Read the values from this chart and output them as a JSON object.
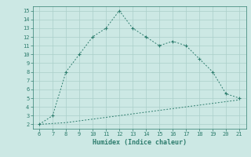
{
  "xlabel": "Humidex (Indice chaleur)",
  "x_main": [
    6,
    7,
    8,
    9,
    10,
    11,
    12,
    13,
    14,
    15,
    16,
    17,
    18,
    19,
    20,
    21
  ],
  "y_main": [
    2,
    3,
    8,
    10,
    12,
    13,
    15,
    13,
    12,
    11,
    11.5,
    11,
    9.5,
    8,
    5.5,
    5
  ],
  "x_flat": [
    6,
    7,
    8,
    9,
    10,
    11,
    12,
    13,
    14,
    15,
    16,
    17,
    18,
    19,
    20,
    21
  ],
  "y_flat": [
    2.0,
    2.1,
    2.2,
    2.4,
    2.6,
    2.8,
    3.0,
    3.2,
    3.4,
    3.6,
    3.8,
    4.0,
    4.2,
    4.4,
    4.6,
    4.8
  ],
  "line_color": "#2e7d6e",
  "bg_color": "#cce8e4",
  "grid_color": "#aacfc9",
  "xlim": [
    5.5,
    21.5
  ],
  "ylim": [
    1.5,
    15.5
  ],
  "xticks": [
    6,
    7,
    8,
    9,
    10,
    11,
    12,
    13,
    14,
    15,
    16,
    17,
    18,
    19,
    20,
    21
  ],
  "yticks": [
    2,
    3,
    4,
    5,
    6,
    7,
    8,
    9,
    10,
    11,
    12,
    13,
    14,
    15
  ],
  "xlabel_fontsize": 6.0,
  "tick_fontsize": 5.0
}
